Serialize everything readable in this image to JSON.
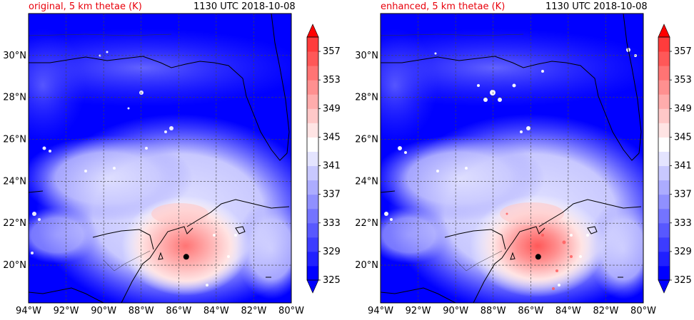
{
  "panels": [
    {
      "title_left": "original, 5 km thetae (K)",
      "title_right": "1130 UTC 2018-10-08",
      "storm_marker": "hurricane-center"
    },
    {
      "title_left": "enhanced, 5 km thetae (K)",
      "title_right": "1130 UTC 2018-10-08",
      "storm_marker": "hurricane-center"
    }
  ],
  "axes": {
    "lat_labels": [
      "30°N",
      "28°N",
      "26°N",
      "24°N",
      "22°N",
      "20°N"
    ],
    "lon_labels": [
      "94°W",
      "92°W",
      "90°W",
      "88°W",
      "86°W",
      "84°W",
      "82°W",
      "80°W"
    ]
  },
  "colorbar": {
    "labels": [
      "357",
      "353",
      "349",
      "345",
      "341",
      "337",
      "333",
      "329",
      "325"
    ],
    "min": 325,
    "max": 359,
    "step": 2,
    "colors": [
      "#0000ff",
      "#2020ff",
      "#3c3cff",
      "#5858ff",
      "#7474ff",
      "#9090ff",
      "#acacff",
      "#c8c8ff",
      "#e4e4ff",
      "#ffffff",
      "#ffe4e4",
      "#ffc8c8",
      "#ffacac",
      "#ff9090",
      "#ff7474",
      "#ff5858",
      "#ff3c3c"
    ]
  },
  "map": {
    "lat_range": [
      18.2,
      32.0
    ],
    "lon_range": [
      -94.0,
      -80.0
    ],
    "storm_position": {
      "lat": 20.4,
      "lon": -85.6
    }
  }
}
